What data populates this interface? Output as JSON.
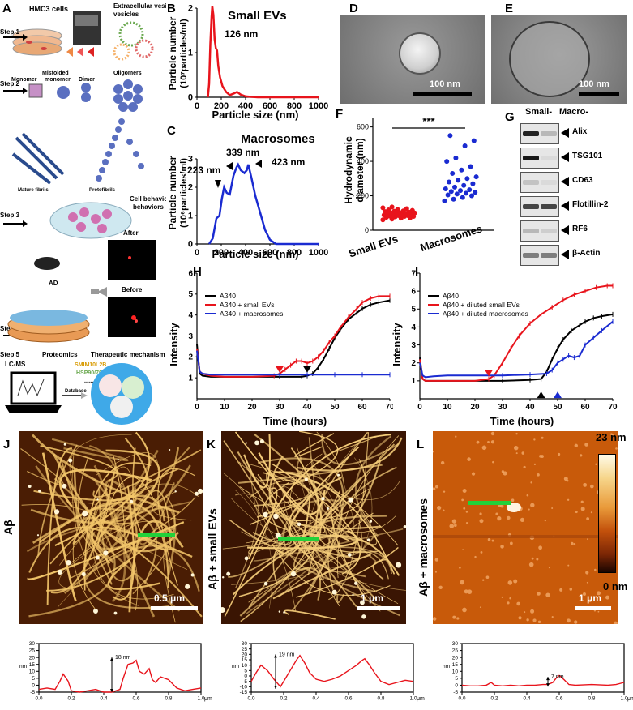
{
  "panels": {
    "A": {
      "label": "A",
      "step1": "Step 1",
      "hmc3": "HMC3 cells",
      "ev": "Extracellular vesicles",
      "step2": "Step 2",
      "monomer": "Monomer",
      "misfolded": "Misfolded monomer",
      "dimer": "Dimer",
      "oligomers": "Oligomers",
      "mature": "Mature fibrils",
      "proto": "Protofibrils",
      "step3": "Step 3",
      "cell": "Cell behaviors",
      "step4": "Step 4",
      "ad": "AD",
      "after": "After",
      "before": "Before",
      "step5": "Step 5",
      "proteomics": "Proteomics",
      "therapeutic": "Therapeutic mechanism",
      "lcms": "LC-MS",
      "smim": "SMIM10L2B",
      "hsp": "HSP90/70",
      "dots": "......",
      "database": "Database"
    },
    "B": {
      "label": "B",
      "title": "Small EVs",
      "peak": "126 nm",
      "ylabel": "Particle number",
      "ylabel2": "(10⁷particles/ml)",
      "xlabel": "Particle size (nm)"
    },
    "C": {
      "label": "C",
      "title": "Macrosomes",
      "p1": "223 nm",
      "p2": "339 nm",
      "p3": "423 nm",
      "ylabel": "Particle number",
      "ylabel2": "(10⁶particles/ml)",
      "xlabel": "Particle size (nm)"
    },
    "D": {
      "label": "D",
      "scale": "100 nm"
    },
    "E": {
      "label": "E",
      "scale": "100 nm"
    },
    "F": {
      "label": "F",
      "ylabel": "Hydrodynamic",
      "ylabel2": "diameter (nm)",
      "sig": "***",
      "cat1": "Small EVs",
      "cat2": "Macrosomes"
    },
    "G": {
      "label": "G",
      "col1": "Small-",
      "col2": "Macro-",
      "rows": [
        "Alix",
        "TSG101",
        "CD63",
        "Flotillin-2",
        "RF6",
        "β-Actin"
      ]
    },
    "H": {
      "label": "H",
      "ylabel": "Intensity",
      "xlabel": "Time (hours)",
      "legend": [
        "Aβ40",
        "Aβ40 + small EVs",
        "Aβ40 + macrosomes"
      ]
    },
    "I": {
      "label": "I",
      "ylabel": "Intensity",
      "xlabel": "Time (hours)",
      "legend": [
        "Aβ40",
        "Aβ40 + diluted small EVs",
        "Aβ40 + diluted macrosomes"
      ]
    },
    "J": {
      "label": "J",
      "side": "Aβ",
      "scale": "0.5 μm",
      "anno": "18 nm"
    },
    "K": {
      "label": "K",
      "side": "Aβ + small EVs",
      "scale": "1 μm",
      "anno": "19 nm"
    },
    "L": {
      "label": "L",
      "side": "Aβ + macrosomes",
      "scale": "1 μm",
      "anno": "7 nm"
    },
    "colorbar": {
      "top": "23 nm",
      "bottom": "0 nm"
    },
    "profile": {
      "unit_y": "nm",
      "unit_x": "μm"
    }
  },
  "chart_data": [
    {
      "id": "B",
      "type": "line",
      "title": "Small EVs",
      "xlabel": "Particle size (nm)",
      "ylabel": "Particle number (10⁷particles/ml)",
      "xlim": [
        0,
        1000
      ],
      "ylim": [
        0,
        2
      ],
      "xticks": [
        0,
        200,
        400,
        600,
        800,
        1000
      ],
      "yticks": [
        0,
        1,
        2
      ],
      "color": "#e8141c",
      "x": [
        90,
        100,
        110,
        120,
        126,
        135,
        145,
        155,
        165,
        175,
        190,
        210,
        240,
        270,
        300,
        330,
        360,
        400,
        450,
        500,
        1000
      ],
      "y": [
        0,
        0.3,
        1.2,
        1.8,
        2.05,
        1.85,
        1.3,
        1.1,
        1.05,
        0.7,
        0.45,
        0.25,
        0.12,
        0.05,
        0.08,
        0.12,
        0.06,
        0.02,
        0.01,
        0,
        0
      ]
    },
    {
      "id": "C",
      "type": "line",
      "title": "Macrosomes",
      "xlabel": "Particle size (nm)",
      "ylabel": "Particle number (10⁶particles/ml)",
      "xlim": [
        0,
        1000
      ],
      "ylim": [
        0,
        3
      ],
      "xticks": [
        0,
        200,
        400,
        600,
        800,
        1000
      ],
      "yticks": [
        0,
        1,
        2,
        3
      ],
      "color": "#1a2bd1",
      "x": [
        100,
        130,
        160,
        185,
        205,
        223,
        245,
        270,
        300,
        325,
        339,
        360,
        390,
        410,
        423,
        450,
        480,
        520,
        560,
        600,
        650,
        1000
      ],
      "y": [
        0,
        0.2,
        0.9,
        1.0,
        1.6,
        2.0,
        1.8,
        1.75,
        2.4,
        2.7,
        2.8,
        2.6,
        2.5,
        2.6,
        2.8,
        2.3,
        1.7,
        1.1,
        0.5,
        0.15,
        0,
        0
      ]
    },
    {
      "id": "F",
      "type": "scatter",
      "categories": [
        "Small EVs",
        "Macrosomes"
      ],
      "ylabel": "Hydrodynamic diameter (nm)",
      "ylim": [
        0,
        650
      ],
      "yticks": [
        0,
        200,
        400,
        600
      ],
      "series": [
        {
          "color": "#e8141c",
          "values": [
            60,
            65,
            70,
            72,
            75,
            78,
            80,
            80,
            82,
            85,
            85,
            88,
            90,
            90,
            92,
            95,
            95,
            98,
            100,
            100,
            102,
            105,
            108,
            110,
            112,
            115,
            118,
            120,
            125,
            130,
            135
          ]
        },
        {
          "color": "#1a2bd1",
          "values": [
            170,
            180,
            190,
            200,
            205,
            210,
            215,
            220,
            225,
            230,
            235,
            240,
            250,
            260,
            270,
            280,
            290,
            300,
            310,
            330,
            350,
            370,
            400,
            420,
            490,
            520,
            550
          ]
        }
      ]
    },
    {
      "id": "H",
      "type": "line",
      "xlabel": "Time (hours)",
      "ylabel": "Intensity",
      "xlim": [
        0,
        70
      ],
      "ylim": [
        0,
        6
      ],
      "xticks": [
        0,
        10,
        20,
        30,
        40,
        50,
        60,
        70
      ],
      "yticks": [
        1,
        2,
        3,
        4,
        5,
        6
      ],
      "series": [
        {
          "name": "Aβ40",
          "color": "#000000",
          "x": [
            0,
            1,
            2,
            5,
            10,
            20,
            30,
            38,
            40,
            42,
            44,
            46,
            48,
            50,
            52,
            55,
            58,
            60,
            63,
            66,
            70
          ],
          "y": [
            2.6,
            1.2,
            1.1,
            1.05,
            1.05,
            1.05,
            1.05,
            1.05,
            1.1,
            1.2,
            1.5,
            1.9,
            2.4,
            2.9,
            3.3,
            3.8,
            4.1,
            4.3,
            4.5,
            4.6,
            4.7
          ]
        },
        {
          "name": "Aβ40 + small EVs",
          "color": "#e8141c",
          "x": [
            0,
            1,
            2,
            5,
            10,
            20,
            28,
            30,
            32,
            34,
            36,
            38,
            40,
            42,
            44,
            46,
            48,
            50,
            52,
            55,
            58,
            60,
            63,
            66,
            70
          ],
          "y": [
            2.4,
            1.3,
            1.2,
            1.1,
            1.05,
            1.05,
            1.1,
            1.2,
            1.4,
            1.6,
            1.8,
            1.8,
            1.7,
            1.8,
            2.0,
            2.3,
            2.7,
            3.0,
            3.4,
            3.9,
            4.3,
            4.6,
            4.8,
            4.9,
            4.9
          ]
        },
        {
          "name": "Aβ40 + macrosomes",
          "color": "#1a2bd1",
          "x": [
            0,
            1,
            2,
            5,
            10,
            20,
            30,
            40,
            50,
            60,
            70
          ],
          "y": [
            2.3,
            1.3,
            1.2,
            1.15,
            1.15,
            1.15,
            1.15,
            1.15,
            1.15,
            1.15,
            1.15
          ]
        }
      ]
    },
    {
      "id": "I",
      "type": "line",
      "xlabel": "Time (hours)",
      "ylabel": "Intensity",
      "xlim": [
        0,
        70
      ],
      "ylim": [
        0,
        7
      ],
      "xticks": [
        0,
        10,
        20,
        30,
        40,
        50,
        60,
        70
      ],
      "yticks": [
        1,
        2,
        3,
        4,
        5,
        6,
        7
      ],
      "series": [
        {
          "name": "Aβ40",
          "color": "#000000",
          "x": [
            0,
            1,
            2,
            5,
            10,
            20,
            30,
            40,
            44,
            46,
            48,
            50,
            52,
            55,
            58,
            60,
            63,
            66,
            70
          ],
          "y": [
            2.3,
            1.1,
            1.0,
            1.0,
            1.0,
            1.0,
            1.0,
            1.05,
            1.1,
            1.5,
            2.2,
            2.8,
            3.3,
            3.8,
            4.1,
            4.3,
            4.5,
            4.6,
            4.7
          ]
        },
        {
          "name": "Aβ40 + diluted small EVs",
          "color": "#e8141c",
          "x": [
            0,
            1,
            2,
            5,
            10,
            20,
            25,
            27,
            30,
            33,
            36,
            40,
            44,
            48,
            52,
            56,
            60,
            64,
            68,
            70
          ],
          "y": [
            2.2,
            1.1,
            1.0,
            1.0,
            1.0,
            1.0,
            1.1,
            1.3,
            2.0,
            2.8,
            3.5,
            4.2,
            4.7,
            5.1,
            5.5,
            5.8,
            6.0,
            6.2,
            6.3,
            6.3
          ]
        },
        {
          "name": "Aβ40 + diluted macrosomes",
          "color": "#1a2bd1",
          "x": [
            0,
            1,
            2,
            5,
            10,
            20,
            30,
            40,
            46,
            48,
            50,
            52,
            54,
            56,
            58,
            60,
            63,
            66,
            70
          ],
          "y": [
            2.0,
            1.3,
            1.2,
            1.25,
            1.3,
            1.3,
            1.3,
            1.35,
            1.4,
            1.6,
            2.0,
            2.2,
            2.4,
            2.3,
            2.4,
            3.0,
            3.4,
            3.8,
            4.3
          ]
        }
      ]
    },
    {
      "id": "J-profile",
      "type": "line",
      "xlabel": "μm",
      "ylabel": "nm",
      "xlim": [
        0,
        1.0
      ],
      "ylim": [
        -5,
        30
      ],
      "xticks": [
        0,
        0.2,
        0.4,
        0.6,
        0.8,
        1.0
      ],
      "yticks": [
        -5,
        0,
        5,
        10,
        15,
        20,
        25,
        30
      ],
      "color": "#e8141c",
      "x": [
        0,
        0.05,
        0.1,
        0.13,
        0.15,
        0.18,
        0.2,
        0.25,
        0.3,
        0.35,
        0.4,
        0.45,
        0.5,
        0.52,
        0.55,
        0.58,
        0.6,
        0.62,
        0.65,
        0.68,
        0.7,
        0.72,
        0.75,
        0.8,
        0.85,
        0.9,
        0.95,
        1.0
      ],
      "y": [
        -3,
        -2,
        -3,
        3,
        8,
        3,
        -4,
        -5,
        -4,
        -3,
        -5,
        -5,
        -3,
        5,
        15,
        16,
        18,
        10,
        8,
        12,
        4,
        2,
        6,
        4,
        -2,
        -4,
        -3,
        -2
      ]
    },
    {
      "id": "K-profile",
      "type": "line",
      "xlabel": "μm",
      "ylabel": "nm",
      "xlim": [
        0,
        1.0
      ],
      "ylim": [
        -15,
        30
      ],
      "xticks": [
        0,
        0.2,
        0.4,
        0.6,
        0.8,
        1.0
      ],
      "yticks": [
        -15,
        -10,
        -5,
        0,
        5,
        10,
        15,
        20,
        25,
        30
      ],
      "color": "#e8141c",
      "x": [
        0,
        0.03,
        0.06,
        0.1,
        0.14,
        0.18,
        0.2,
        0.24,
        0.28,
        0.3,
        0.33,
        0.36,
        0.4,
        0.45,
        0.5,
        0.55,
        0.6,
        0.65,
        0.68,
        0.7,
        0.73,
        0.76,
        0.8,
        0.85,
        0.9,
        0.95,
        1.0
      ],
      "y": [
        -5,
        3,
        10,
        5,
        -3,
        -10,
        -5,
        5,
        15,
        19,
        12,
        3,
        -3,
        -5,
        -3,
        0,
        5,
        10,
        14,
        16,
        10,
        3,
        -5,
        -8,
        -6,
        -4,
        -5
      ]
    },
    {
      "id": "L-profile",
      "type": "line",
      "xlabel": "μm",
      "ylabel": "nm",
      "xlim": [
        0,
        1.0
      ],
      "ylim": [
        -5,
        30
      ],
      "xticks": [
        0,
        0.2,
        0.4,
        0.6,
        0.8,
        1.0
      ],
      "yticks": [
        -5,
        0,
        5,
        10,
        15,
        20,
        25,
        30
      ],
      "color": "#e8141c",
      "x": [
        0,
        0.05,
        0.1,
        0.15,
        0.18,
        0.2,
        0.25,
        0.3,
        0.35,
        0.4,
        0.45,
        0.5,
        0.53,
        0.56,
        0.58,
        0.6,
        0.63,
        0.66,
        0.7,
        0.8,
        0.9,
        0.95,
        1.0
      ],
      "y": [
        0,
        -0.5,
        -0.5,
        0,
        2,
        0,
        -0.5,
        0,
        -0.5,
        0,
        0,
        0.5,
        0.5,
        2,
        5,
        7,
        4,
        0.5,
        0,
        0.5,
        0,
        0.5,
        2
      ]
    }
  ]
}
